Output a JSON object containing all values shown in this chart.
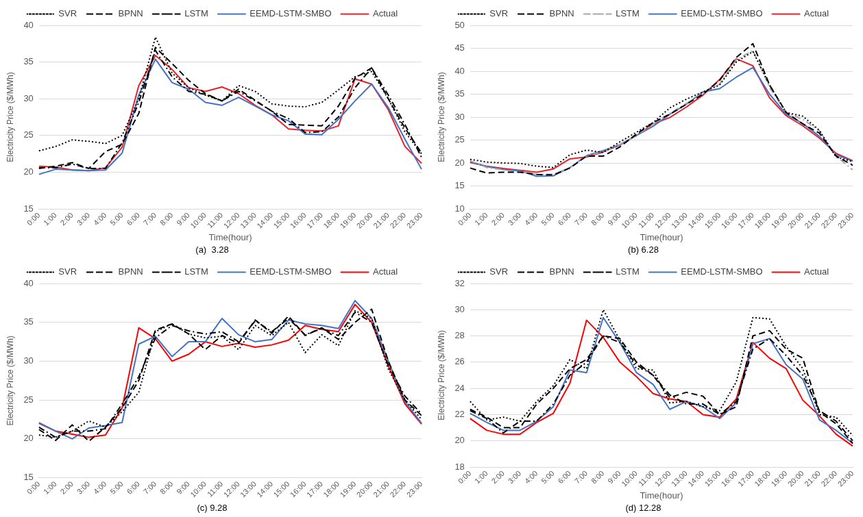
{
  "chart_data": [
    {
      "type": "line",
      "title": "(a)  3.28",
      "xlabel": "Time(hour)",
      "ylabel": "Electricity Price ($/MWh)",
      "categories": [
        "0:00",
        "1:00",
        "2:00",
        "3:00",
        "4:00",
        "5:00",
        "6:00",
        "7:00",
        "8:00",
        "9:00",
        "10:00",
        "11:00",
        "12:00",
        "13:00",
        "14:00",
        "15:00",
        "16:00",
        "17:00",
        "18:00",
        "19:00",
        "20:00",
        "21:00",
        "22:00",
        "23:00"
      ],
      "ylim": [
        15,
        40
      ],
      "yticks": [
        15,
        20,
        25,
        30,
        35,
        40
      ],
      "grid": "y",
      "legend": "top",
      "marker": "none",
      "series": [
        {
          "name": "SVR",
          "color": "#000000",
          "line_style": "dotted",
          "values": [
            22.9,
            23.5,
            24.4,
            24.2,
            23.9,
            25,
            30,
            38.4,
            33.5,
            31.5,
            30.5,
            29.7,
            31.8,
            31,
            29.3,
            29,
            28.9,
            29.5,
            31.2,
            33,
            33.7,
            30,
            25.5,
            22.5
          ]
        },
        {
          "name": "BPNN",
          "color": "#000000",
          "line_style": "dashed",
          "values": [
            20.5,
            20.8,
            21.3,
            20.5,
            22.8,
            23.8,
            28,
            37,
            34.8,
            32.5,
            30.7,
            29.7,
            31.3,
            29.8,
            28.3,
            26.5,
            26.4,
            26.3,
            29,
            32.8,
            34.2,
            30,
            26,
            22.6
          ]
        },
        {
          "name": "LSTM",
          "color": "#000000",
          "line_style": "dashdot",
          "values": [
            20.6,
            20.6,
            21.1,
            20.5,
            20.5,
            24,
            29.5,
            36.6,
            33,
            31,
            30.6,
            29.7,
            31,
            29.7,
            28.3,
            27.3,
            25.4,
            25.5,
            27.5,
            31.5,
            34.2,
            30.5,
            26.5,
            22
          ]
        },
        {
          "name": "EEMD-LSTM-SMBO",
          "color": "#4472c4",
          "line_style": "solid",
          "values": [
            19.7,
            20.4,
            20.3,
            20.2,
            20.3,
            22.6,
            30.5,
            35.4,
            32.2,
            31.3,
            29.5,
            29.1,
            30.2,
            29,
            27.8,
            27,
            25.2,
            25.1,
            27.2,
            29.7,
            32,
            28.8,
            24.5,
            20.4
          ]
        },
        {
          "name": "Actual",
          "color": "#e8202a",
          "line_style": "solid",
          "values": [
            20.8,
            20.7,
            20.3,
            20.2,
            20.6,
            23.4,
            31.8,
            35.9,
            34,
            31.5,
            31,
            31.6,
            30.7,
            29.1,
            27.8,
            25.9,
            25.7,
            25.6,
            26.3,
            32.7,
            32,
            28.5,
            23.5,
            21.2
          ]
        }
      ]
    },
    {
      "type": "line",
      "title": "(b) 6.28",
      "xlabel": "Time(hour)",
      "ylabel": "Electricity Price ($/MWh)",
      "categories": [
        "0:00",
        "1:00",
        "2:00",
        "3:00",
        "4:00",
        "5:00",
        "6:00",
        "7:00",
        "8:00",
        "9:00",
        "10:00",
        "11:00",
        "12:00",
        "13:00",
        "14:00",
        "15:00",
        "16:00",
        "17:00",
        "18:00",
        "19:00",
        "20:00",
        "21:00",
        "22:00",
        "23:00"
      ],
      "ylim": [
        10,
        50
      ],
      "yticks": [
        10,
        15,
        20,
        25,
        30,
        35,
        40,
        45,
        50
      ],
      "grid": "y",
      "legend": "top",
      "marker": "none",
      "series": [
        {
          "name": "SVR",
          "color": "#000000",
          "line_style": "dotted",
          "values": [
            20.8,
            20.2,
            20,
            19.9,
            19.3,
            19,
            21.8,
            22.8,
            22.3,
            24.6,
            26.7,
            28.8,
            32,
            33.9,
            35.5,
            37,
            42,
            44.3,
            37,
            31,
            30.2,
            27.1,
            21.3,
            20.3
          ]
        },
        {
          "name": "BPNN",
          "color": "#000000",
          "line_style": "dashed",
          "values": [
            18.9,
            17.8,
            18,
            18,
            17.5,
            17.4,
            18.9,
            21.5,
            21.5,
            23.5,
            26.3,
            28.8,
            30.6,
            32.8,
            35,
            38,
            43,
            46,
            37,
            31,
            28.5,
            26.5,
            21.5,
            19.5
          ]
        },
        {
          "name": "LSTM",
          "color": "#a6a6a6",
          "line_style": "dashdot",
          "values": [
            20.5,
            19,
            18.5,
            18,
            17.5,
            17.5,
            19,
            21.5,
            22.5,
            24,
            26,
            28.5,
            30.8,
            33,
            35.2,
            37.2,
            42.5,
            44.5,
            36.5,
            31,
            29.5,
            27,
            21.5,
            18.5
          ]
        },
        {
          "name": "EEMD-LSTM-SMBO",
          "color": "#4472c4",
          "line_style": "solid",
          "values": [
            20.3,
            19.2,
            18.6,
            18.3,
            17.1,
            17.2,
            19,
            21.6,
            22.7,
            24,
            26,
            28,
            30.6,
            32.8,
            35.5,
            36.2,
            38.7,
            40.8,
            35,
            30.6,
            28.6,
            25.8,
            21.8,
            20.4
          ]
        },
        {
          "name": "Actual",
          "color": "#e8202a",
          "line_style": "solid",
          "values": [
            20.1,
            19.3,
            18.8,
            18.4,
            18,
            18.7,
            20.9,
            21.3,
            22.4,
            23.9,
            26,
            28.5,
            29.9,
            32.2,
            34.8,
            38.2,
            42.7,
            41.2,
            34.2,
            30.3,
            28.1,
            25.4,
            22.1,
            20.5
          ]
        }
      ]
    },
    {
      "type": "line",
      "title": "(c) 9.28",
      "ylabel": "Electricity Price ($/MWh)",
      "categories": [
        "0:00",
        "1:00",
        "2:00",
        "3:00",
        "4:00",
        "5:00",
        "6:00",
        "7:00",
        "8:00",
        "9:00",
        "10:00",
        "11:00",
        "12:00",
        "13:00",
        "14:00",
        "15:00",
        "16:00",
        "17:00",
        "18:00",
        "19:00",
        "20:00",
        "21:00",
        "22:00",
        "23:00"
      ],
      "ylim": [
        15,
        40
      ],
      "yticks": [
        15,
        20,
        25,
        30,
        35,
        40
      ],
      "grid": "y",
      "legend": "top",
      "marker": "none",
      "series": [
        {
          "name": "SVR",
          "color": "#000000",
          "line_style": "dotted",
          "values": [
            20.5,
            20.2,
            21,
            22.3,
            21.5,
            23.5,
            26,
            33.8,
            34.8,
            33.5,
            33,
            33.2,
            31.5,
            34.6,
            33.3,
            35,
            31.1,
            33.4,
            32,
            36.5,
            35.5,
            29,
            25,
            22.5
          ]
        },
        {
          "name": "BPNN",
          "color": "#000000",
          "line_style": "dashed",
          "values": [
            21.2,
            19.8,
            21.8,
            19.7,
            21.5,
            24,
            27.5,
            34,
            34.8,
            33.5,
            31.5,
            33.3,
            32.3,
            35.3,
            33.6,
            35.8,
            33.3,
            34.3,
            32.8,
            35,
            36.7,
            30,
            25,
            23
          ]
        },
        {
          "name": "LSTM",
          "color": "#000000",
          "line_style": "dashdot",
          "values": [
            21.5,
            20.2,
            21,
            21,
            21.3,
            24.5,
            28,
            33,
            34.6,
            33.9,
            33.5,
            33.8,
            32.5,
            35.2,
            33.8,
            35.5,
            33.4,
            34.2,
            33.3,
            36.3,
            35,
            29.5,
            25.5,
            23.2
          ]
        },
        {
          "name": "EEMD-LSTM-SMBO",
          "color": "#4472c4",
          "line_style": "solid",
          "values": [
            22.1,
            21,
            20,
            21.4,
            21.7,
            22.1,
            32.2,
            33.2,
            30.6,
            32.5,
            32.5,
            35.5,
            33.4,
            32.5,
            32.8,
            35.3,
            34.8,
            34.6,
            34.2,
            37.8,
            35.5,
            30,
            24.8,
            22
          ]
        },
        {
          "name": "Actual",
          "color": "#ff0000",
          "line_style": "solid",
          "values": [
            22,
            21,
            20.6,
            20.2,
            20.5,
            24,
            34.3,
            32.9,
            30,
            30.9,
            32.5,
            31.9,
            32.3,
            31.8,
            32.1,
            32.7,
            34.6,
            34.1,
            33.8,
            37.3,
            35,
            29.4,
            24.5,
            21.9
          ]
        }
      ]
    },
    {
      "type": "line",
      "title": "(d) 12.28",
      "xlabel": "Time(hour)",
      "ylabel": "Electricity Price ($/MWh)",
      "categories": [
        "0:00",
        "1:00",
        "2:00",
        "3:00",
        "4:00",
        "5:00",
        "6:00",
        "7:00",
        "8:00",
        "9:00",
        "10:00",
        "11:00",
        "12:00",
        "13:00",
        "14:00",
        "15:00",
        "16:00",
        "17:00",
        "18:00",
        "19:00",
        "20:00",
        "21:00",
        "22:00",
        "23:00"
      ],
      "ylim": [
        18,
        32
      ],
      "yticks": [
        18,
        20,
        22,
        24,
        26,
        28,
        30,
        32
      ],
      "grid": "y",
      "legend": "top",
      "marker": "none",
      "series": [
        {
          "name": "SVR",
          "color": "#000000",
          "line_style": "dotted",
          "values": [
            23,
            21.6,
            21.8,
            21.5,
            23,
            24.2,
            26.2,
            25.5,
            30,
            27.7,
            25.5,
            25.4,
            22.9,
            23,
            22.6,
            22.3,
            24.5,
            29.4,
            29.3,
            27.2,
            25.5,
            22,
            21.8,
            20.4
          ]
        },
        {
          "name": "BPNN",
          "color": "#000000",
          "line_style": "dashed",
          "values": [
            22.4,
            21.8,
            21,
            21,
            22.8,
            24,
            25.5,
            26.2,
            28,
            27.8,
            26,
            25,
            23.3,
            23.7,
            23.4,
            22,
            22.6,
            28,
            28.4,
            27,
            26.3,
            22.2,
            21.3,
            19.8
          ]
        },
        {
          "name": "LSTM",
          "color": "#000000",
          "line_style": "dashdot",
          "values": [
            22.3,
            21.7,
            20.6,
            21.5,
            21.5,
            22.8,
            25,
            26,
            28,
            27.5,
            25.8,
            25,
            23.5,
            22.8,
            22.8,
            22,
            23,
            27,
            27.8,
            26.5,
            25,
            22.3,
            21.5,
            20
          ]
        },
        {
          "name": "EEMD-LSTM-SMBO",
          "color": "#4472c4",
          "line_style": "solid",
          "values": [
            22.1,
            21.4,
            20.8,
            20.8,
            21.5,
            22.6,
            25.4,
            25.2,
            29.4,
            27.5,
            25.2,
            24.3,
            22.4,
            23,
            22.6,
            21.7,
            22.9,
            27.4,
            27.8,
            25.8,
            24.7,
            21.6,
            20.8,
            19.8
          ]
        },
        {
          "name": "Actual",
          "color": "#ff0000",
          "line_style": "solid",
          "values": [
            21.7,
            20.8,
            20.5,
            20.5,
            21.4,
            22.1,
            24.4,
            29.2,
            27.9,
            26,
            24.9,
            23.6,
            23.2,
            23,
            22,
            21.8,
            23.2,
            27.5,
            26.3,
            25.5,
            23.1,
            21.9,
            20.5,
            19.6
          ]
        }
      ]
    }
  ]
}
